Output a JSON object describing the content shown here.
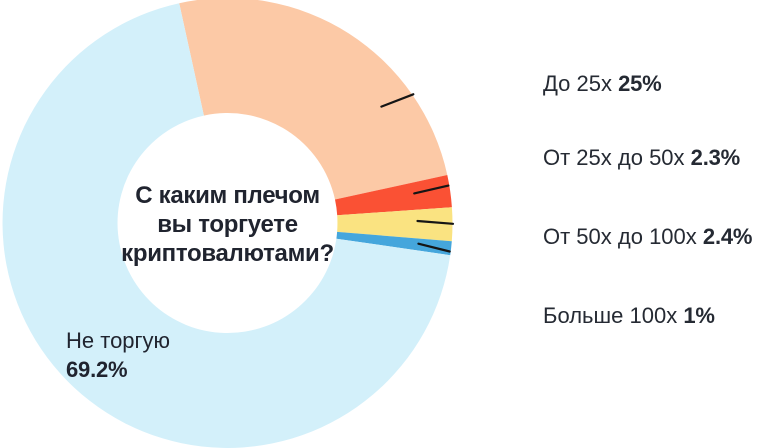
{
  "colors": {
    "background": "#FFFFFF",
    "text": "#252A33",
    "center_text": "#20242F",
    "callout_line": "#151515"
  },
  "chart_data": {
    "type": "pie",
    "donut": true,
    "title": "С каким плечом вы торгуете криптовалютами?",
    "title_lines": [
      "С каким плечом",
      "вы торгуете",
      "криптовалютами?"
    ],
    "legend_position": "right",
    "start_angle_deg": -12.4,
    "slices": [
      {
        "id": "do-25x",
        "label": "До 25x",
        "value": 25,
        "display": "25%",
        "color": "#FCC9A6"
      },
      {
        "id": "ot-25x-do-50x",
        "label": "От 25x до 50x",
        "value": 2.3,
        "display": "2.3%",
        "color": "#FA5134"
      },
      {
        "id": "ot-50x-do-100x",
        "label": "От 50x до 100x",
        "value": 2.4,
        "display": "2.4%",
        "color": "#FAE381"
      },
      {
        "id": "bolshe-100x",
        "label": "Больше 100x",
        "value": 1,
        "display": "1%",
        "color": "#45A6DC"
      },
      {
        "id": "ne-torguyu",
        "label": "Не торгую",
        "value": 69.2,
        "display": "69.2%",
        "color": "#D3F0FA"
      }
    ]
  }
}
